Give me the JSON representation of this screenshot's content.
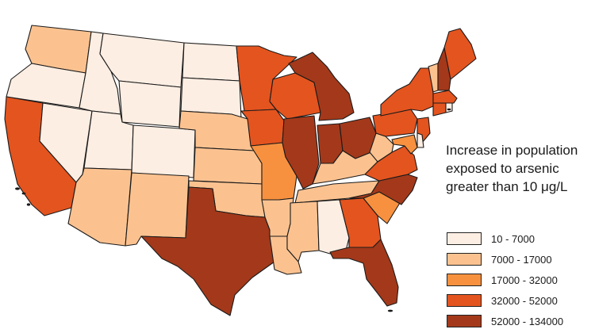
{
  "legend": {
    "title_lines": [
      "Increase in population",
      "exposed to arsenic",
      "greater than 10 μg/L"
    ],
    "classes": [
      {
        "label": "10 - 7000",
        "color": "#fdeee3"
      },
      {
        "label": "7000 - 17000",
        "color": "#fbc290"
      },
      {
        "label": "17000 - 32000",
        "color": "#f7913f"
      },
      {
        "label": "32000 - 52000",
        "color": "#e4541f"
      },
      {
        "label": "52000 - 134000",
        "color": "#a3391a"
      }
    ]
  },
  "map": {
    "states": {
      "WA": 1,
      "OR": 0,
      "CA": 3,
      "NV": 0,
      "ID": 0,
      "MT": 0,
      "WY": 0,
      "UT": 0,
      "AZ": 1,
      "CO": 0,
      "NM": 1,
      "ND": 0,
      "SD": 0,
      "NE": 1,
      "KS": 1,
      "OK": 1,
      "TX": 4,
      "MN": 3,
      "IA": 3,
      "MO": 2,
      "AR": 1,
      "LA": 1,
      "WI": 3,
      "IL": 4,
      "MI": 4,
      "IN": 4,
      "OH": 4,
      "KY": 1,
      "TN": 1,
      "MS": 1,
      "AL": 0,
      "GA": 3,
      "FL": 4,
      "SC": 2,
      "NC": 4,
      "VA": 3,
      "WV": 1,
      "PA": 3,
      "NY": 3,
      "VT": 1,
      "NH": 4,
      "ME": 3,
      "MA": 3,
      "CT": 3,
      "RI": 0,
      "NJ": 3,
      "DE": 0,
      "MD": 2
    }
  }
}
